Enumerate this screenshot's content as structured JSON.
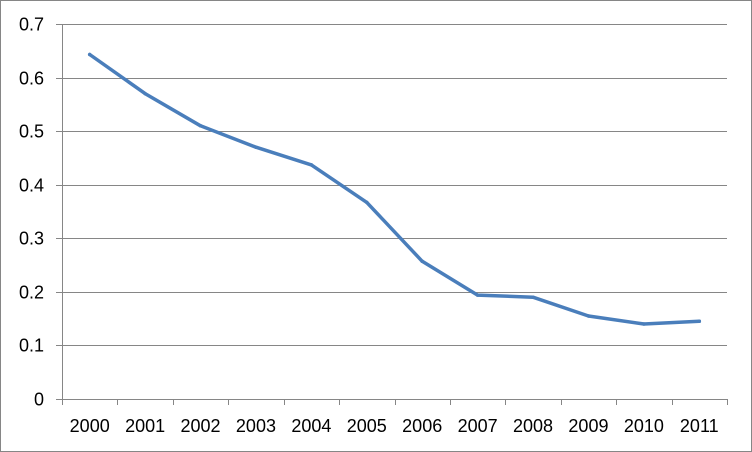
{
  "chart_data": {
    "type": "line",
    "title": "",
    "xlabel": "",
    "ylabel": "",
    "categories": [
      "2000",
      "2001",
      "2002",
      "2003",
      "2004",
      "2005",
      "2006",
      "2007",
      "2008",
      "2009",
      "2010",
      "2011"
    ],
    "series": [
      {
        "values": [
          0.643,
          0.57,
          0.51,
          0.47,
          0.437,
          0.367,
          0.257,
          0.194,
          0.19,
          0.155,
          0.14,
          0.145
        ]
      }
    ],
    "ylim": [
      0,
      0.7
    ],
    "yticks": [
      "0",
      "0.1",
      "0.2",
      "0.3",
      "0.4",
      "0.5",
      "0.6",
      "0.7"
    ],
    "grid": true,
    "legend": "none",
    "colors": {
      "line": "#4a7ebb",
      "grid": "#868686",
      "axis": "#868686",
      "text": "#000000"
    }
  }
}
